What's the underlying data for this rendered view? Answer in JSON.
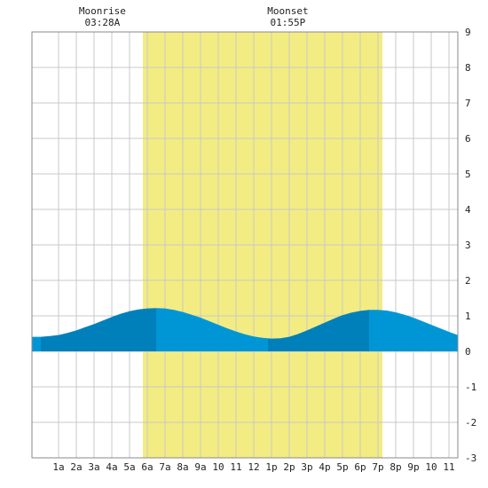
{
  "chart_data": {
    "type": "area",
    "title": "",
    "xlabel": "",
    "ylabel": "",
    "xlim": [
      -0.5,
      23.5
    ],
    "ylim": [
      -3,
      9
    ],
    "y_ticks": [
      9,
      8,
      7,
      6,
      5,
      4,
      3,
      2,
      1,
      0,
      -1,
      -2,
      -3
    ],
    "x_ticks": [
      {
        "x": 1,
        "label": "1a"
      },
      {
        "x": 2,
        "label": "2a"
      },
      {
        "x": 3,
        "label": "3a"
      },
      {
        "x": 4,
        "label": "4a"
      },
      {
        "x": 5,
        "label": "5a"
      },
      {
        "x": 6,
        "label": "6a"
      },
      {
        "x": 7,
        "label": "7a"
      },
      {
        "x": 8,
        "label": "8a"
      },
      {
        "x": 9,
        "label": "9a"
      },
      {
        "x": 10,
        "label": "10"
      },
      {
        "x": 11,
        "label": "11"
      },
      {
        "x": 12,
        "label": "12"
      },
      {
        "x": 13,
        "label": "1p"
      },
      {
        "x": 14,
        "label": "2p"
      },
      {
        "x": 15,
        "label": "3p"
      },
      {
        "x": 16,
        "label": "4p"
      },
      {
        "x": 17,
        "label": "5p"
      },
      {
        "x": 18,
        "label": "6p"
      },
      {
        "x": 19,
        "label": "7p"
      },
      {
        "x": 20,
        "label": "8p"
      },
      {
        "x": 21,
        "label": "9p"
      },
      {
        "x": 22,
        "label": "10"
      },
      {
        "x": 23,
        "label": "11"
      }
    ],
    "grid": true,
    "daylight": {
      "start": 5.75,
      "end": 19.25,
      "color": "#f3ec82"
    },
    "moon_events": [
      {
        "label": "Moonrise",
        "time": "03:28A",
        "x": 3.47
      },
      {
        "label": "Moonset",
        "time": "01:55P",
        "x": 13.92
      }
    ],
    "series": [
      {
        "x": [
          -0.5,
          0.0,
          0.5,
          1.0,
          1.5,
          2.0,
          2.5,
          3.0,
          3.5,
          4.0,
          4.5,
          5.0,
          5.5,
          6.0,
          6.5,
          7.0,
          7.5,
          8.0,
          8.5,
          9.0,
          9.5,
          10.0,
          10.5,
          11.0,
          11.5,
          12.0,
          12.5,
          13.0,
          13.5,
          14.0,
          14.5,
          15.0,
          15.5,
          16.0,
          16.5,
          17.0,
          17.5,
          18.0,
          18.5,
          19.0,
          19.5,
          20.0,
          20.5,
          21.0,
          21.5,
          22.0,
          22.5,
          23.0,
          23.5
        ],
        "values": [
          0.41,
          0.41,
          0.43,
          0.46,
          0.52,
          0.59,
          0.68,
          0.77,
          0.87,
          0.97,
          1.06,
          1.13,
          1.18,
          1.21,
          1.22,
          1.21,
          1.17,
          1.11,
          1.03,
          0.95,
          0.85,
          0.75,
          0.65,
          0.56,
          0.48,
          0.42,
          0.38,
          0.36,
          0.37,
          0.41,
          0.49,
          0.59,
          0.7,
          0.81,
          0.92,
          1.02,
          1.09,
          1.14,
          1.17,
          1.17,
          1.15,
          1.1,
          1.03,
          0.95,
          0.85,
          0.75,
          0.65,
          0.55,
          0.46
        ]
      }
    ],
    "tide_bands": [
      {
        "from": -0.5,
        "to": 0.0,
        "color": "#0096d6"
      },
      {
        "from": 0.0,
        "to": 6.5,
        "color": "#0080bb"
      },
      {
        "from": 6.5,
        "to": 12.8,
        "color": "#0096d6"
      },
      {
        "from": 12.8,
        "to": 18.5,
        "color": "#0080bb"
      },
      {
        "from": 18.5,
        "to": 23.5,
        "color": "#0096d6"
      }
    ]
  }
}
